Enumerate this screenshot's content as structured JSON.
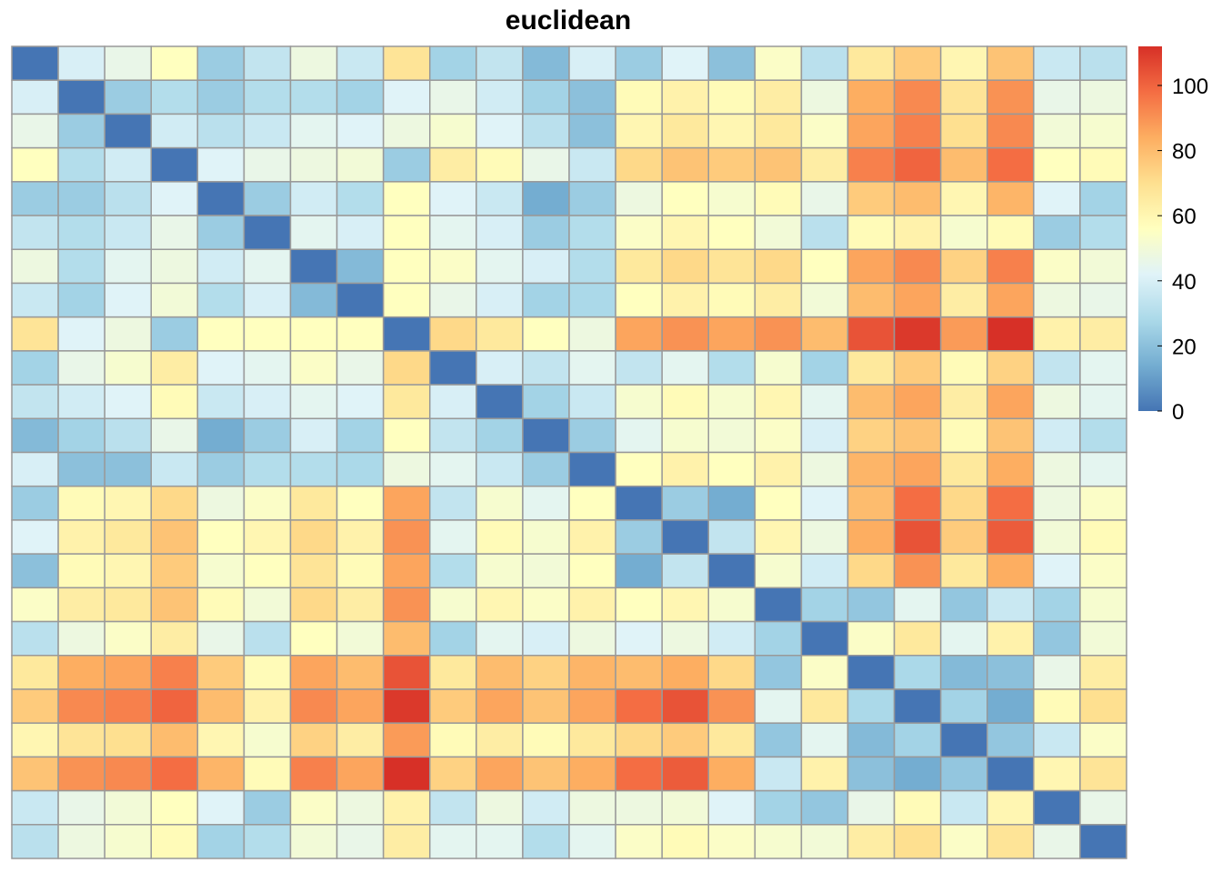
{
  "chart_data": {
    "type": "heatmap",
    "title": "euclidean",
    "n_rows": 24,
    "n_cols": 24,
    "values": [
      [
        0,
        40,
        46,
        56,
        24,
        34,
        48,
        36,
        68,
        26,
        34,
        18,
        40,
        24,
        42,
        20,
        54,
        32,
        66,
        76,
        60,
        78,
        36,
        32
      ],
      [
        40,
        0,
        24,
        30,
        24,
        30,
        30,
        26,
        42,
        46,
        38,
        26,
        20,
        58,
        62,
        58,
        64,
        48,
        84,
        92,
        68,
        90,
        46,
        48
      ],
      [
        46,
        24,
        0,
        38,
        32,
        36,
        44,
        42,
        48,
        52,
        42,
        32,
        20,
        60,
        66,
        60,
        66,
        54,
        86,
        94,
        70,
        92,
        50,
        52
      ],
      [
        56,
        30,
        38,
        0,
        42,
        46,
        48,
        50,
        24,
        64,
        58,
        46,
        36,
        72,
        78,
        76,
        78,
        64,
        94,
        100,
        80,
        98,
        56,
        58
      ],
      [
        24,
        24,
        32,
        42,
        0,
        24,
        38,
        30,
        56,
        42,
        36,
        14,
        24,
        48,
        56,
        52,
        58,
        46,
        76,
        80,
        60,
        82,
        42,
        26
      ],
      [
        34,
        30,
        36,
        46,
        24,
        0,
        44,
        40,
        56,
        44,
        40,
        24,
        30,
        54,
        60,
        56,
        50,
        32,
        58,
        62,
        52,
        58,
        24,
        30
      ],
      [
        48,
        30,
        44,
        48,
        38,
        44,
        0,
        18,
        56,
        54,
        44,
        40,
        30,
        66,
        72,
        68,
        72,
        56,
        86,
        92,
        74,
        94,
        54,
        50
      ],
      [
        36,
        26,
        42,
        50,
        30,
        40,
        18,
        0,
        56,
        46,
        40,
        26,
        28,
        56,
        62,
        58,
        64,
        50,
        80,
        86,
        64,
        86,
        48,
        46
      ],
      [
        68,
        42,
        48,
        24,
        56,
        56,
        56,
        56,
        0,
        72,
        66,
        56,
        48,
        86,
        90,
        86,
        90,
        80,
        104,
        110,
        88,
        112,
        62,
        64
      ],
      [
        26,
        46,
        52,
        64,
        42,
        44,
        54,
        46,
        72,
        0,
        40,
        34,
        44,
        34,
        44,
        30,
        52,
        26,
        66,
        76,
        58,
        74,
        34,
        44
      ],
      [
        34,
        38,
        42,
        58,
        36,
        40,
        44,
        42,
        66,
        40,
        0,
        26,
        36,
        52,
        58,
        52,
        60,
        44,
        80,
        86,
        64,
        86,
        48,
        44
      ],
      [
        18,
        26,
        32,
        46,
        14,
        24,
        40,
        26,
        56,
        34,
        26,
        0,
        24,
        44,
        52,
        50,
        54,
        40,
        74,
        78,
        58,
        78,
        38,
        30
      ],
      [
        40,
        20,
        20,
        36,
        24,
        30,
        30,
        28,
        48,
        44,
        36,
        24,
        0,
        56,
        62,
        56,
        62,
        48,
        82,
        86,
        66,
        84,
        48,
        44
      ],
      [
        24,
        58,
        60,
        72,
        48,
        54,
        66,
        56,
        86,
        34,
        52,
        44,
        56,
        0,
        24,
        14,
        56,
        42,
        80,
        98,
        72,
        98,
        48,
        54
      ],
      [
        42,
        62,
        66,
        78,
        56,
        60,
        72,
        62,
        90,
        44,
        58,
        52,
        62,
        24,
        0,
        34,
        60,
        48,
        84,
        104,
        76,
        102,
        50,
        58
      ],
      [
        20,
        58,
        60,
        76,
        52,
        56,
        68,
        58,
        86,
        30,
        52,
        50,
        56,
        14,
        34,
        0,
        52,
        38,
        72,
        90,
        66,
        84,
        42,
        54
      ],
      [
        54,
        64,
        66,
        78,
        58,
        50,
        72,
        64,
        90,
        52,
        60,
        54,
        62,
        56,
        60,
        52,
        0,
        26,
        22,
        44,
        22,
        36,
        26,
        52
      ],
      [
        32,
        48,
        54,
        64,
        46,
        32,
        56,
        50,
        80,
        26,
        44,
        40,
        48,
        42,
        48,
        38,
        26,
        0,
        54,
        66,
        44,
        62,
        22,
        50
      ],
      [
        66,
        84,
        86,
        94,
        76,
        58,
        86,
        80,
        104,
        66,
        80,
        74,
        82,
        80,
        84,
        72,
        22,
        54,
        0,
        28,
        18,
        20,
        46,
        64
      ],
      [
        76,
        92,
        94,
        100,
        80,
        62,
        92,
        86,
        110,
        76,
        86,
        78,
        86,
        98,
        104,
        90,
        44,
        66,
        28,
        0,
        26,
        14,
        58,
        70
      ],
      [
        60,
        68,
        70,
        80,
        60,
        52,
        74,
        64,
        88,
        58,
        64,
        58,
        66,
        72,
        76,
        66,
        22,
        44,
        18,
        26,
        0,
        22,
        36,
        54
      ],
      [
        78,
        90,
        92,
        98,
        82,
        58,
        94,
        86,
        112,
        74,
        86,
        78,
        84,
        98,
        102,
        84,
        36,
        62,
        20,
        14,
        22,
        0,
        60,
        68
      ],
      [
        36,
        46,
        50,
        56,
        42,
        24,
        54,
        48,
        62,
        34,
        48,
        38,
        48,
        48,
        50,
        42,
        26,
        22,
        46,
        58,
        36,
        60,
        0,
        46
      ],
      [
        32,
        48,
        52,
        58,
        26,
        30,
        50,
        46,
        64,
        44,
        44,
        30,
        44,
        54,
        58,
        54,
        52,
        50,
        64,
        70,
        54,
        68,
        46,
        0
      ]
    ],
    "colorbar": {
      "min": 0,
      "max": 112,
      "ticks": [
        "0",
        "20",
        "40",
        "60",
        "80",
        "100"
      ],
      "tick_values": [
        0,
        20,
        40,
        60,
        80,
        100
      ],
      "palette": [
        "#4575b4",
        "#74add1",
        "#abd9e9",
        "#e0f3f8",
        "#ffffbf",
        "#fee090",
        "#fdae61",
        "#f46d43",
        "#d73027"
      ]
    },
    "colors": {
      "cell_border": "#999999",
      "background": "#ffffff"
    }
  }
}
